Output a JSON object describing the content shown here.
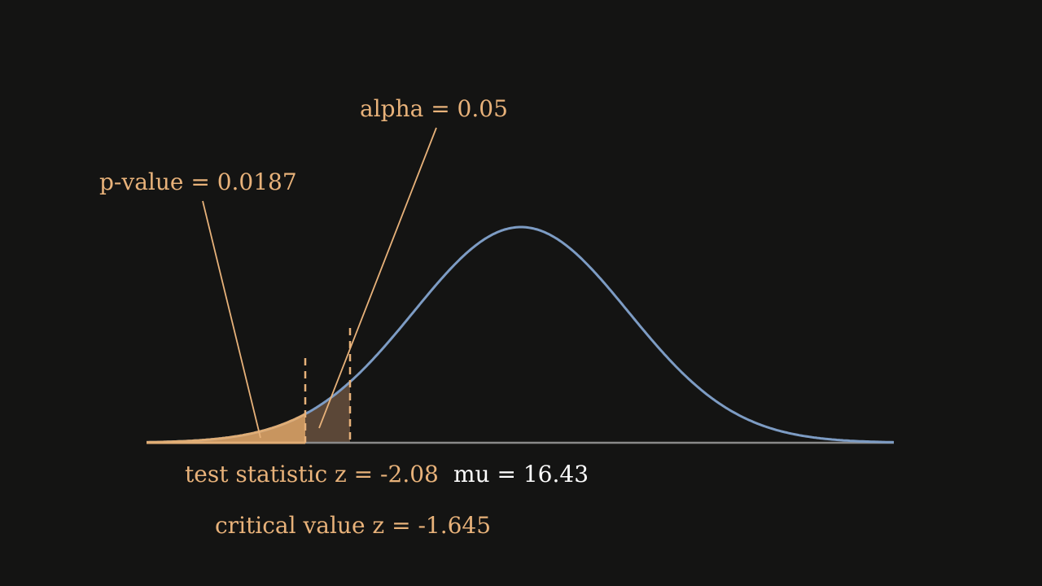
{
  "annotations": {
    "alpha": "alpha = 0.05",
    "p_value": "p-value = 0.0187"
  },
  "labels": {
    "test_statistic": "test statistic z = -2.08",
    "mu": "mu = 16.43",
    "critical_value": "critical value z = -1.645"
  }
}
